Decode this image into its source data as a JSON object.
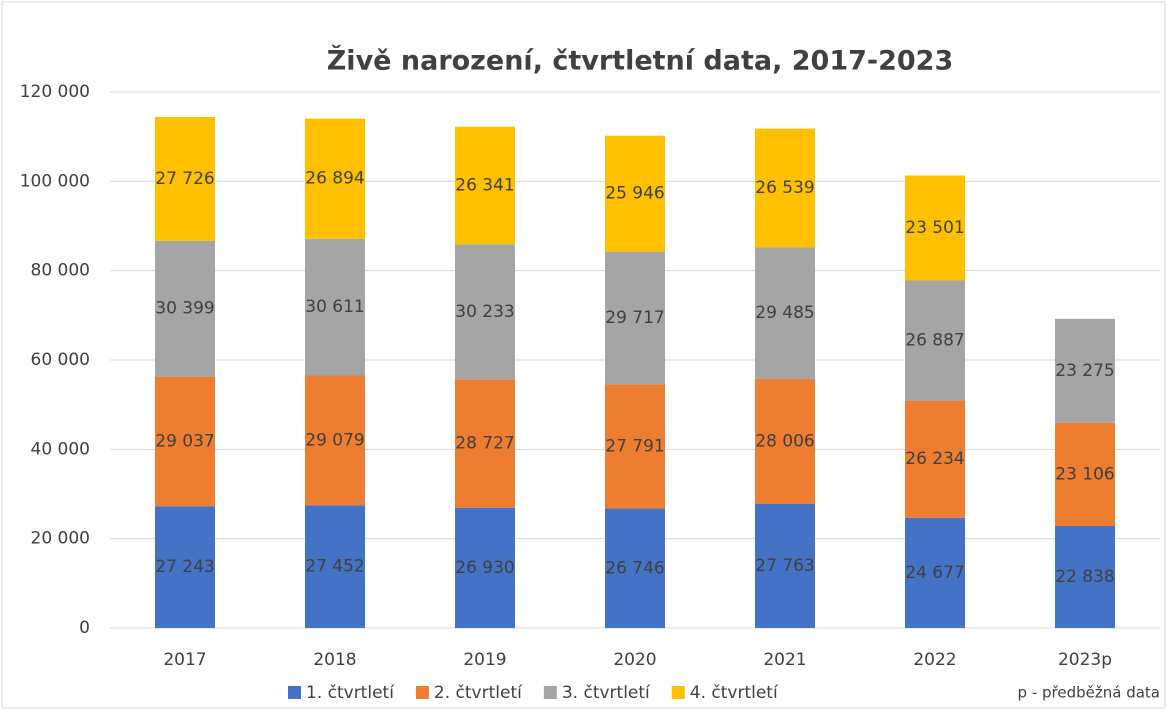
{
  "chart_data": {
    "type": "bar",
    "stacked": true,
    "title": "Živě narození, čtvrtletní data, 2017-2023",
    "note": "p - předběžná data",
    "categories": [
      "2017",
      "2018",
      "2019",
      "2020",
      "2021",
      "2022",
      "2023p"
    ],
    "series": [
      {
        "name": "1. čtvrtletí",
        "color": "#4472c4",
        "values": [
          27243,
          27452,
          26930,
          26746,
          27763,
          24677,
          22838
        ],
        "value_labels": [
          "27 243",
          "27 452",
          "26 930",
          "26 746",
          "27 763",
          "24 677",
          "22 838"
        ]
      },
      {
        "name": "2. čtvrtletí",
        "color": "#ed7d31",
        "values": [
          29037,
          29079,
          28727,
          27791,
          28006,
          26234,
          23106
        ],
        "value_labels": [
          "29 037",
          "29 079",
          "28 727",
          "27 791",
          "28 006",
          "26 234",
          "23 106"
        ]
      },
      {
        "name": "3. čtvrtletí",
        "color": "#a5a5a5",
        "values": [
          30399,
          30611,
          30233,
          29717,
          29485,
          26887,
          23275
        ],
        "value_labels": [
          "30 399",
          "30 611",
          "30 233",
          "29 717",
          "29 485",
          "26 887",
          "23 275"
        ]
      },
      {
        "name": "4. čtvrtletí",
        "color": "#ffc000",
        "values": [
          27726,
          26894,
          26341,
          25946,
          26539,
          23501,
          null
        ],
        "value_labels": [
          "27 726",
          "26 894",
          "26 341",
          "25 946",
          "26 539",
          "23 501",
          null
        ]
      }
    ],
    "ylim": [
      0,
      120000
    ],
    "yticks": [
      0,
      {
        "value": 20000,
        "label": "20 000"
      },
      {
        "value": 40000,
        "label": "40 000"
      },
      {
        "value": 60000,
        "label": "60 000"
      },
      {
        "value": 80000,
        "label": "80 000"
      },
      {
        "value": 100000,
        "label": "100 000"
      },
      {
        "value": 120000,
        "label": "120 000"
      }
    ],
    "grid": true,
    "legend": "bottom"
  }
}
